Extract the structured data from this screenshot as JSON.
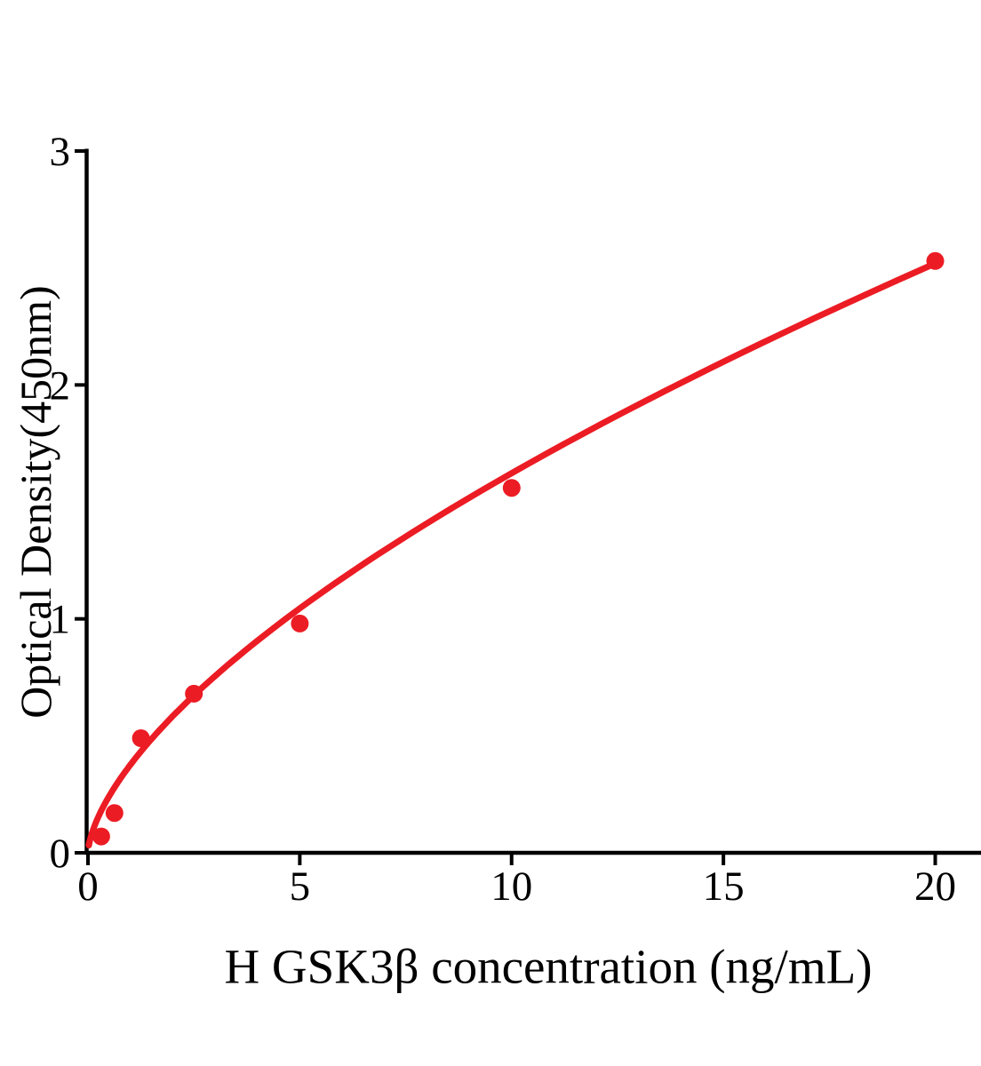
{
  "figure": {
    "background_color": "#ffffff",
    "axis_color": "#000000",
    "accent_color": "#ec1c24"
  },
  "chart_data": {
    "type": "scatter",
    "title": "",
    "xlabel": "H GSK3β concentration (ng/mL)",
    "ylabel": "Optical Density(450nm)",
    "x_unit": "ng/mL",
    "y_unit": "OD 450nm",
    "xlim": [
      0,
      21.1
    ],
    "ylim": [
      0,
      3
    ],
    "x_ticks": [
      0,
      5,
      10,
      15,
      20
    ],
    "y_ticks": [
      0,
      1,
      2,
      3
    ],
    "grid": false,
    "legend": "none",
    "series": [
      {
        "name": "standard-points",
        "type": "scatter",
        "color": "#ec1c24",
        "x": [
          0.3125,
          0.625,
          1.25,
          2.5,
          5,
          10,
          20
        ],
        "y": [
          0.07,
          0.17,
          0.49,
          0.68,
          0.98,
          1.56,
          2.53
        ]
      },
      {
        "name": "fitted-curve",
        "type": "line",
        "color": "#ec1c24",
        "fit": {
          "type": "power",
          "a": 0.376,
          "b": 0.635,
          "x_min": 0.02,
          "x_max": 20
        }
      }
    ]
  }
}
